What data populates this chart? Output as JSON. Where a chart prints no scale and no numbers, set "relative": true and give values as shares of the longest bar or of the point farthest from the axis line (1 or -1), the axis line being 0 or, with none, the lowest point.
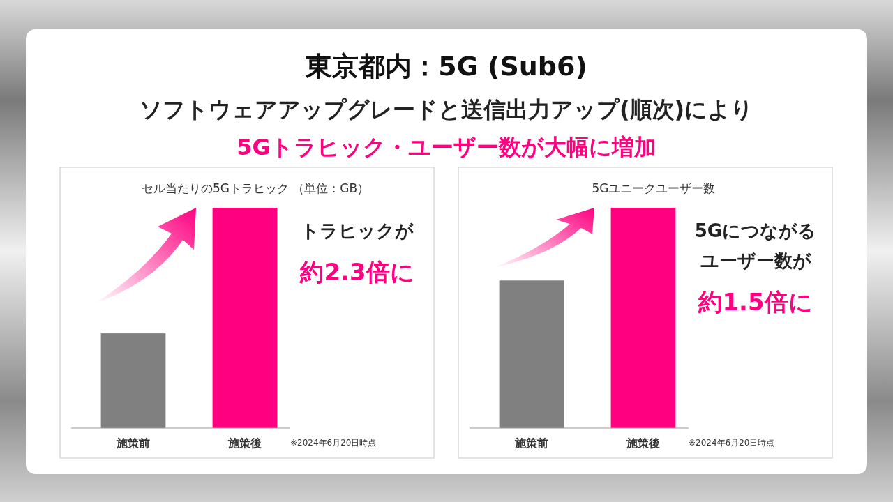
{
  "chart_data": [
    {
      "type": "other",
      "title": "東京都内：5G (Sub6)",
      "subtitle": "ソフトウェアアップグレードと送信出力アップ(順次)により",
      "annotations": [
        "5Gトラヒック・ユーザー数が大幅に増加"
      ]
    },
    {
      "type": "bar",
      "title": "セル当たりの5Gトラヒック （単位：GB）",
      "categories": [
        "施策前",
        "施策後"
      ],
      "values": [
        0.43,
        1
      ],
      "colors": [
        "#808080",
        "#ff0080"
      ],
      "relative": true,
      "annotations": [
        "トラヒックが",
        "約2.3倍に",
        "※2024年6月20日時点"
      ]
    },
    {
      "type": "bar",
      "title": "5Gユニークユーザー数",
      "categories": [
        "施策前",
        "施策後"
      ],
      "values": [
        0.67,
        1
      ],
      "colors": [
        "#808080",
        "#ff0080"
      ],
      "relative": true,
      "annotations": [
        "5Gにつながる",
        "ユーザー数が",
        "約1.5倍に",
        "※2024年6月20日時点"
      ]
    }
  ]
}
